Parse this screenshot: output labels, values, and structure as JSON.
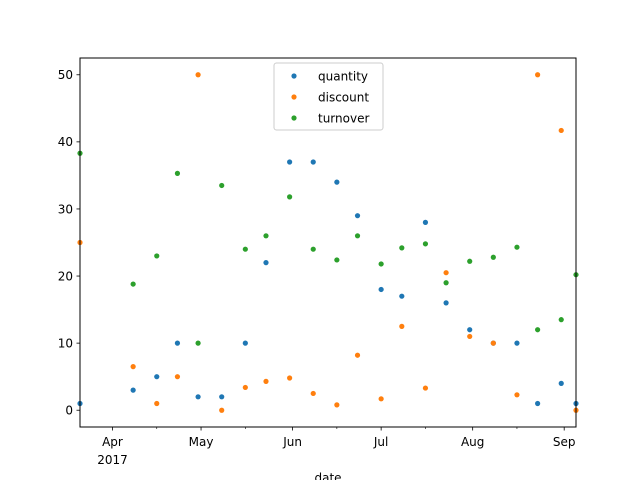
{
  "chart_data": {
    "type": "scatter",
    "title": "",
    "xlabel": "date",
    "ylabel": "",
    "x_range": [
      "2017-03-21",
      "2017-09-05"
    ],
    "ylim": [
      -2.5,
      52.5
    ],
    "yticks": [
      0,
      10,
      20,
      30,
      40,
      50
    ],
    "xticks": [
      {
        "date": "2017-04-01",
        "label": "Apr",
        "sublabel": "2017"
      },
      {
        "date": "2017-05-01",
        "label": "May",
        "sublabel": ""
      },
      {
        "date": "2017-06-01",
        "label": "Jun",
        "sublabel": ""
      },
      {
        "date": "2017-07-01",
        "label": "Jul",
        "sublabel": ""
      },
      {
        "date": "2017-08-01",
        "label": "Aug",
        "sublabel": ""
      },
      {
        "date": "2017-09-01",
        "label": "Sep",
        "sublabel": ""
      }
    ],
    "x": [
      "2017-03-21",
      "2017-04-08",
      "2017-04-16",
      "2017-04-23",
      "2017-04-30",
      "2017-05-08",
      "2017-05-16",
      "2017-05-23",
      "2017-05-31",
      "2017-06-08",
      "2017-06-16",
      "2017-06-23",
      "2017-07-01",
      "2017-07-08",
      "2017-07-16",
      "2017-07-23",
      "2017-07-31",
      "2017-08-08",
      "2017-08-16",
      "2017-08-23",
      "2017-08-31",
      "2017-09-05"
    ],
    "legend_position": "top-center",
    "grid": false,
    "series": [
      {
        "name": "quantity",
        "color": "#1f77b4",
        "points": [
          {
            "x": "2017-03-21",
            "y": 1
          },
          {
            "x": "2017-04-08",
            "y": 3
          },
          {
            "x": "2017-04-16",
            "y": 5
          },
          {
            "x": "2017-04-23",
            "y": 10
          },
          {
            "x": "2017-04-30",
            "y": 2
          },
          {
            "x": "2017-05-08",
            "y": 2
          },
          {
            "x": "2017-05-16",
            "y": 10
          },
          {
            "x": "2017-05-23",
            "y": 22
          },
          {
            "x": "2017-05-31",
            "y": 37
          },
          {
            "x": "2017-06-08",
            "y": 37
          },
          {
            "x": "2017-06-16",
            "y": 34
          },
          {
            "x": "2017-06-23",
            "y": 29
          },
          {
            "x": "2017-07-01",
            "y": 18
          },
          {
            "x": "2017-07-08",
            "y": 17
          },
          {
            "x": "2017-07-16",
            "y": 28
          },
          {
            "x": "2017-07-23",
            "y": 16
          },
          {
            "x": "2017-07-31",
            "y": 12
          },
          {
            "x": "2017-08-08",
            "y": 10
          },
          {
            "x": "2017-08-16",
            "y": 10
          },
          {
            "x": "2017-08-23",
            "y": 1
          },
          {
            "x": "2017-08-31",
            "y": 4
          },
          {
            "x": "2017-09-05",
            "y": 1
          }
        ]
      },
      {
        "name": "discount",
        "color": "#ff7f0e",
        "points": [
          {
            "x": "2017-03-21",
            "y": 25
          },
          {
            "x": "2017-04-08",
            "y": 6.5
          },
          {
            "x": "2017-04-16",
            "y": 1
          },
          {
            "x": "2017-04-23",
            "y": 5
          },
          {
            "x": "2017-04-30",
            "y": 50
          },
          {
            "x": "2017-05-08",
            "y": 0
          },
          {
            "x": "2017-05-16",
            "y": 3.4
          },
          {
            "x": "2017-05-23",
            "y": 4.3
          },
          {
            "x": "2017-05-31",
            "y": 4.8
          },
          {
            "x": "2017-06-08",
            "y": 2.5
          },
          {
            "x": "2017-06-16",
            "y": 0.8
          },
          {
            "x": "2017-06-23",
            "y": 8.2
          },
          {
            "x": "2017-07-01",
            "y": 1.7
          },
          {
            "x": "2017-07-08",
            "y": 12.5
          },
          {
            "x": "2017-07-16",
            "y": 3.3
          },
          {
            "x": "2017-07-23",
            "y": 20.5
          },
          {
            "x": "2017-07-31",
            "y": 11
          },
          {
            "x": "2017-08-08",
            "y": 10
          },
          {
            "x": "2017-08-16",
            "y": 2.3
          },
          {
            "x": "2017-08-23",
            "y": 50
          },
          {
            "x": "2017-08-31",
            "y": 41.7
          },
          {
            "x": "2017-09-05",
            "y": 0
          }
        ]
      },
      {
        "name": "turnover",
        "color": "#2ca02c",
        "points": [
          {
            "x": "2017-03-21",
            "y": 38.3
          },
          {
            "x": "2017-04-08",
            "y": 18.8
          },
          {
            "x": "2017-04-16",
            "y": 23
          },
          {
            "x": "2017-04-23",
            "y": 35.3
          },
          {
            "x": "2017-04-30",
            "y": 10
          },
          {
            "x": "2017-05-08",
            "y": 33.5
          },
          {
            "x": "2017-05-16",
            "y": 24
          },
          {
            "x": "2017-05-23",
            "y": 26
          },
          {
            "x": "2017-05-31",
            "y": 31.8
          },
          {
            "x": "2017-06-08",
            "y": 24
          },
          {
            "x": "2017-06-16",
            "y": 22.4
          },
          {
            "x": "2017-06-23",
            "y": 26
          },
          {
            "x": "2017-07-01",
            "y": 21.8
          },
          {
            "x": "2017-07-08",
            "y": 24.2
          },
          {
            "x": "2017-07-16",
            "y": 24.8
          },
          {
            "x": "2017-07-23",
            "y": 19
          },
          {
            "x": "2017-07-31",
            "y": 22.2
          },
          {
            "x": "2017-08-08",
            "y": 22.8
          },
          {
            "x": "2017-08-16",
            "y": 24.3
          },
          {
            "x": "2017-08-23",
            "y": 12
          },
          {
            "x": "2017-08-31",
            "y": 13.5
          },
          {
            "x": "2017-09-05",
            "y": 20.2
          }
        ]
      }
    ]
  }
}
